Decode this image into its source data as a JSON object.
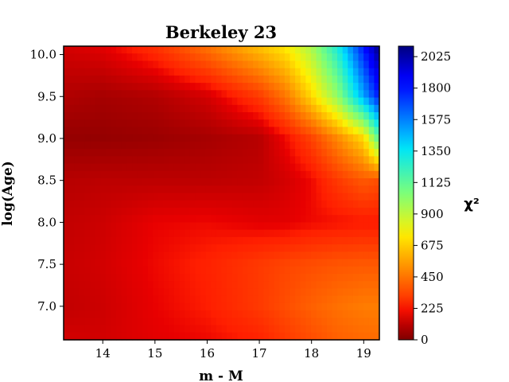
{
  "chart_data": {
    "type": "heatmap",
    "title": "Berkeley 23",
    "xlabel": "m - M",
    "ylabel": "log(Age)",
    "xlim": [
      13.25,
      19.3
    ],
    "ylim": [
      6.6,
      10.1
    ],
    "xticks": [
      14,
      15,
      16,
      17,
      18,
      19
    ],
    "yticks": [
      7.0,
      7.5,
      8.0,
      8.5,
      9.0,
      9.5,
      10.0
    ],
    "ytick_labels": [
      "7.0",
      "7.5",
      "8.0",
      "8.5",
      "9.0",
      "9.5",
      "10.0"
    ],
    "colorbar": {
      "label": "χ²",
      "range": [
        0,
        2100
      ],
      "ticks": [
        0,
        225,
        450,
        675,
        900,
        1125,
        1350,
        1575,
        1800,
        2025
      ],
      "colormap": "jet_r"
    },
    "grid": false,
    "x_nodes": [
      13.25,
      14.0,
      15.0,
      16.0,
      17.0,
      17.5,
      18.0,
      18.5,
      19.0,
      19.3
    ],
    "y_nodes": [
      6.6,
      7.0,
      7.5,
      8.0,
      8.5,
      9.0,
      9.5,
      10.1
    ],
    "z": [
      [
        150,
        150,
        180,
        200,
        240,
        300,
        350,
        400,
        420,
        430
      ],
      [
        120,
        140,
        190,
        230,
        300,
        350,
        400,
        440,
        470,
        470
      ],
      [
        130,
        150,
        200,
        240,
        300,
        330,
        350,
        370,
        380,
        380
      ],
      [
        120,
        140,
        190,
        200,
        180,
        180,
        200,
        210,
        220,
        220
      ],
      [
        100,
        110,
        110,
        110,
        120,
        150,
        200,
        300,
        380,
        350
      ],
      [
        40,
        40,
        50,
        70,
        100,
        200,
        320,
        500,
        700,
        1150
      ],
      [
        90,
        70,
        90,
        150,
        300,
        450,
        700,
        1000,
        1500,
        1800
      ],
      [
        150,
        180,
        280,
        450,
        650,
        750,
        950,
        1300,
        1800,
        2100
      ]
    ]
  }
}
